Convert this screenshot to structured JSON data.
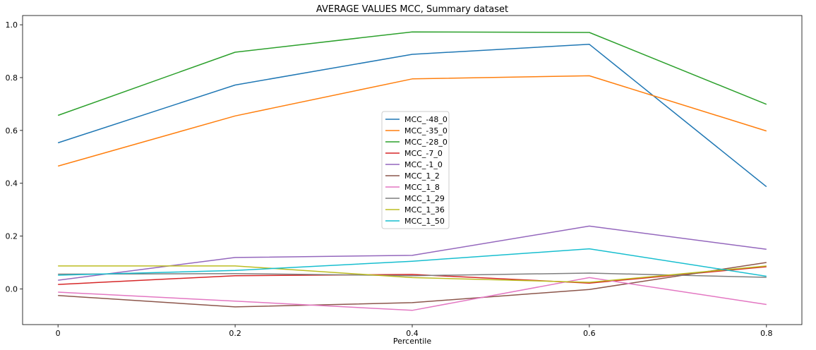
{
  "chart_data": {
    "type": "line",
    "title": "AVERAGE VALUES MCC, Summary dataset",
    "xlabel": "Percentile",
    "ylabel": "",
    "x": [
      0,
      0.2,
      0.4,
      0.6,
      0.8
    ],
    "x_tick_labels": [
      "0",
      "0.2",
      "0.4",
      "0.6",
      "0.8"
    ],
    "y_tick_values": [
      0.0,
      0.2,
      0.4,
      0.6,
      0.8,
      1.0
    ],
    "y_tick_labels": [
      "0.0",
      "0.2",
      "0.4",
      "0.6",
      "0.8",
      "1.0"
    ],
    "xlim": [
      -0.04,
      0.84
    ],
    "ylim": [
      -0.135,
      1.035
    ],
    "grid": false,
    "legend_position": "center",
    "series": [
      {
        "name": "MCC_-48_0",
        "color": "#1f77b4",
        "values": [
          0.553,
          0.772,
          0.888,
          0.926,
          0.387
        ]
      },
      {
        "name": "MCC_-35_0",
        "color": "#ff7f0e",
        "values": [
          0.465,
          0.655,
          0.795,
          0.807,
          0.598
        ]
      },
      {
        "name": "MCC_-28_0",
        "color": "#2ca02c",
        "values": [
          0.657,
          0.896,
          0.973,
          0.971,
          0.699
        ]
      },
      {
        "name": "MCC_-7_0",
        "color": "#d62728",
        "values": [
          0.017,
          0.05,
          0.055,
          0.022,
          0.084
        ]
      },
      {
        "name": "MCC_-1_0",
        "color": "#9467bd",
        "values": [
          0.033,
          0.119,
          0.127,
          0.238,
          0.15
        ]
      },
      {
        "name": "MCC_1_2",
        "color": "#8c564b",
        "values": [
          -0.025,
          -0.068,
          -0.052,
          -0.002,
          0.1
        ]
      },
      {
        "name": "MCC_1_8",
        "color": "#e377c2",
        "values": [
          -0.012,
          -0.046,
          -0.081,
          0.043,
          -0.059
        ]
      },
      {
        "name": "MCC_1_29",
        "color": "#7f7f7f",
        "values": [
          0.056,
          0.058,
          0.05,
          0.06,
          0.044
        ]
      },
      {
        "name": "MCC_1_36",
        "color": "#bcbd22",
        "values": [
          0.087,
          0.087,
          0.043,
          0.025,
          0.087
        ]
      },
      {
        "name": "MCC_1_50",
        "color": "#17becf",
        "values": [
          0.052,
          0.07,
          0.105,
          0.152,
          0.048
        ]
      }
    ]
  }
}
